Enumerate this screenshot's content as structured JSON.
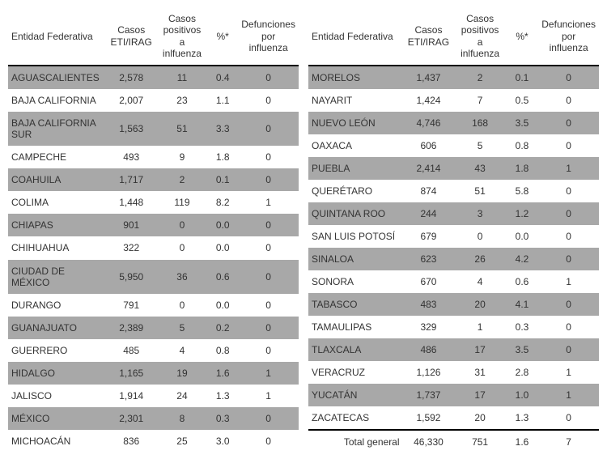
{
  "headers": {
    "entity": "Entidad Federativa",
    "cases_eti": "Casos ETI/IRAG",
    "cases_pos": "Casos positivos a inlfuenza",
    "pct": "%*",
    "deaths": "Defunciones por influenza"
  },
  "left_rows": [
    {
      "e": "AGUASCALIENTES",
      "c": "2,578",
      "p": "11",
      "pct": "0.4",
      "d": "0"
    },
    {
      "e": "BAJA CALIFORNIA",
      "c": "2,007",
      "p": "23",
      "pct": "1.1",
      "d": "0"
    },
    {
      "e": "BAJA CALIFORNIA SUR",
      "c": "1,563",
      "p": "51",
      "pct": "3.3",
      "d": "0"
    },
    {
      "e": "CAMPECHE",
      "c": "493",
      "p": "9",
      "pct": "1.8",
      "d": "0"
    },
    {
      "e": "COAHUILA",
      "c": "1,717",
      "p": "2",
      "pct": "0.1",
      "d": "0"
    },
    {
      "e": "COLIMA",
      "c": "1,448",
      "p": "119",
      "pct": "8.2",
      "d": "1"
    },
    {
      "e": "CHIAPAS",
      "c": "901",
      "p": "0",
      "pct": "0.0",
      "d": "0"
    },
    {
      "e": "CHIHUAHUA",
      "c": "322",
      "p": "0",
      "pct": "0.0",
      "d": "0"
    },
    {
      "e": "CIUDAD DE MÉXICO",
      "c": "5,950",
      "p": "36",
      "pct": "0.6",
      "d": "0"
    },
    {
      "e": "DURANGO",
      "c": "791",
      "p": "0",
      "pct": "0.0",
      "d": "0"
    },
    {
      "e": "GUANAJUATO",
      "c": "2,389",
      "p": "5",
      "pct": "0.2",
      "d": "0"
    },
    {
      "e": "GUERRERO",
      "c": "485",
      "p": "4",
      "pct": "0.8",
      "d": "0"
    },
    {
      "e": "HIDALGO",
      "c": "1,165",
      "p": "19",
      "pct": "1.6",
      "d": "1"
    },
    {
      "e": "JALISCO",
      "c": "1,914",
      "p": "24",
      "pct": "1.3",
      "d": "1"
    },
    {
      "e": "MÉXICO",
      "c": "2,301",
      "p": "8",
      "pct": "0.3",
      "d": "0"
    },
    {
      "e": "MICHOACÁN",
      "c": "836",
      "p": "25",
      "pct": "3.0",
      "d": "0"
    }
  ],
  "right_rows": [
    {
      "e": "MORELOS",
      "c": "1,437",
      "p": "2",
      "pct": "0.1",
      "d": "0"
    },
    {
      "e": "NAYARIT",
      "c": "1,424",
      "p": "7",
      "pct": "0.5",
      "d": "0"
    },
    {
      "e": "NUEVO LEÓN",
      "c": "4,746",
      "p": "168",
      "pct": "3.5",
      "d": "0"
    },
    {
      "e": "OAXACA",
      "c": "606",
      "p": "5",
      "pct": "0.8",
      "d": "0"
    },
    {
      "e": "PUEBLA",
      "c": "2,414",
      "p": "43",
      "pct": "1.8",
      "d": "1"
    },
    {
      "e": "QUERÉTARO",
      "c": "874",
      "p": "51",
      "pct": "5.8",
      "d": "0"
    },
    {
      "e": "QUINTANA ROO",
      "c": "244",
      "p": "3",
      "pct": "1.2",
      "d": "0"
    },
    {
      "e": "SAN LUIS POTOSÍ",
      "c": "679",
      "p": "0",
      "pct": "0.0",
      "d": "0"
    },
    {
      "e": "SINALOA",
      "c": "623",
      "p": "26",
      "pct": "4.2",
      "d": "0"
    },
    {
      "e": "SONORA",
      "c": "670",
      "p": "4",
      "pct": "0.6",
      "d": "1"
    },
    {
      "e": "TABASCO",
      "c": "483",
      "p": "20",
      "pct": "4.1",
      "d": "0"
    },
    {
      "e": "TAMAULIPAS",
      "c": "329",
      "p": "1",
      "pct": "0.3",
      "d": "0"
    },
    {
      "e": "TLAXCALA",
      "c": "486",
      "p": "17",
      "pct": "3.5",
      "d": "0"
    },
    {
      "e": "VERACRUZ",
      "c": "1,126",
      "p": "31",
      "pct": "2.8",
      "d": "1"
    },
    {
      "e": "YUCATÁN",
      "c": "1,737",
      "p": "17",
      "pct": "1.0",
      "d": "1"
    },
    {
      "e": "ZACATECAS",
      "c": "1,592",
      "p": "20",
      "pct": "1.3",
      "d": "0"
    }
  ],
  "total": {
    "label": "Total general",
    "c": "46,330",
    "p": "751",
    "pct": "1.6",
    "d": "7"
  }
}
